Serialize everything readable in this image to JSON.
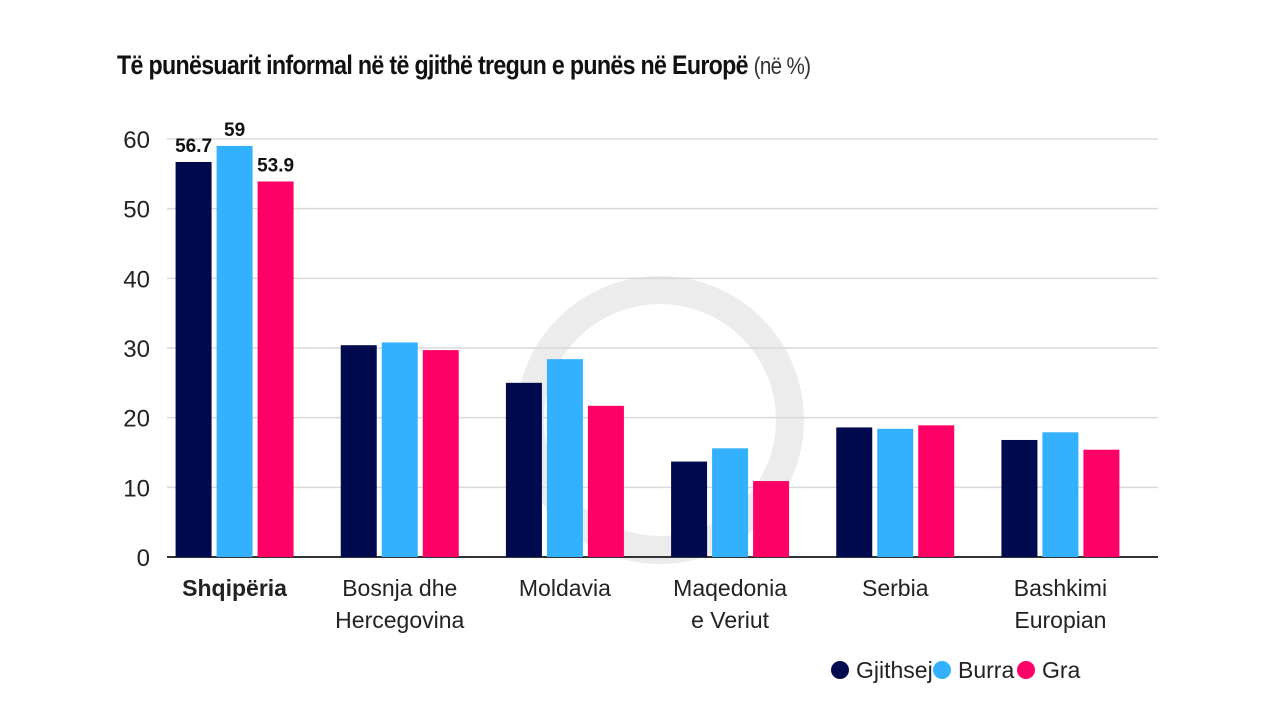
{
  "chart_data": {
    "type": "bar",
    "title": "Të punësuarit informal në të gjithë tregun e punës në Europë",
    "title_unit": "(në %)",
    "xlabel": "",
    "ylabel": "",
    "ylim": [
      0,
      60
    ],
    "yticks": [
      0,
      10,
      20,
      30,
      40,
      50,
      60
    ],
    "grid": true,
    "legend_position": "bottom-right",
    "categories": [
      [
        "Shqipëria"
      ],
      [
        "Bosnja dhe",
        "Hercegovina"
      ],
      [
        "Moldavia"
      ],
      [
        "Maqedonia",
        "e Veriut"
      ],
      [
        "Serbia"
      ],
      [
        "Bashkimi",
        "Europian"
      ]
    ],
    "highlight_category": 0,
    "series": [
      {
        "name": "Gjithsej",
        "color": "#000a4e",
        "values": [
          56.7,
          30.4,
          25.0,
          13.7,
          18.6,
          16.8
        ]
      },
      {
        "name": "Burra",
        "color": "#33b1ff",
        "values": [
          59,
          30.8,
          28.4,
          15.6,
          18.4,
          17.9
        ]
      },
      {
        "name": "Gra",
        "color": "#ff0066",
        "values": [
          53.9,
          29.7,
          21.7,
          10.9,
          18.9,
          15.4
        ]
      }
    ],
    "data_labels": [
      {
        "category": 0,
        "series": 0,
        "text": "56.7"
      },
      {
        "category": 0,
        "series": 1,
        "text": "59"
      },
      {
        "category": 0,
        "series": 2,
        "text": "53.9"
      }
    ]
  }
}
